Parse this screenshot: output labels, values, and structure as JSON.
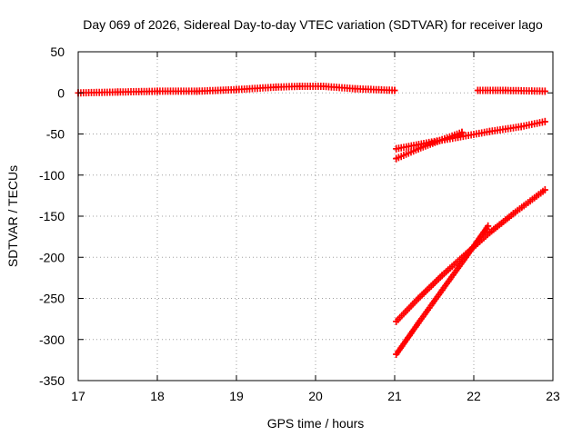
{
  "chart_data": {
    "type": "scatter",
    "title": "Day 069 of 2026, Sidereal Day-to-day VTEC variation (SDTVAR) for receiver lago",
    "xlabel": "GPS time / hours",
    "ylabel": "SDTVAR / TECUs",
    "xlim": [
      17,
      23
    ],
    "ylim": [
      -350,
      50
    ],
    "xticks": [
      17,
      18,
      19,
      20,
      21,
      22,
      23
    ],
    "yticks": [
      50,
      0,
      -50,
      -100,
      -150,
      -200,
      -250,
      -300,
      -350
    ],
    "grid": true,
    "marker": "plus",
    "color": "#ff0000",
    "series": [
      {
        "x": [
          17.0,
          17.5,
          18.0,
          18.5,
          19.0,
          19.5,
          19.8,
          20.1,
          20.5,
          21.0
        ],
        "y": [
          0,
          1,
          2,
          2,
          4,
          7,
          8,
          8,
          5,
          3
        ]
      },
      {
        "x": [
          22.05,
          22.4,
          22.9
        ],
        "y": [
          3,
          3,
          2
        ]
      },
      {
        "x": [
          21.02,
          21.3,
          21.6,
          21.85
        ],
        "y": [
          -80,
          -68,
          -57,
          -48
        ]
      },
      {
        "x": [
          21.02,
          21.4,
          21.8,
          22.2,
          22.6,
          22.9
        ],
        "y": [
          -68,
          -61,
          -54,
          -47,
          -41,
          -35
        ]
      },
      {
        "x": [
          21.02,
          21.3,
          21.6,
          21.9,
          22.2,
          22.5,
          22.9
        ],
        "y": [
          -278,
          -250,
          -222,
          -196,
          -170,
          -147,
          -118
        ]
      },
      {
        "x": [
          21.02,
          21.3,
          21.6,
          21.9,
          22.18
        ],
        "y": [
          -318,
          -280,
          -240,
          -200,
          -162
        ]
      }
    ]
  }
}
